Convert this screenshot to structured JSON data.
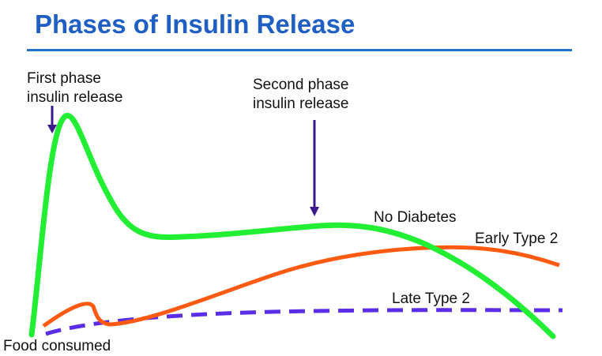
{
  "title": "Phases of Insulin Release",
  "annotations": {
    "first_phase_1": "First phase",
    "first_phase_2": "insulin release",
    "second_phase_1": "Second phase",
    "second_phase_2": "insulin release",
    "food": "Food consumed"
  },
  "colors": {
    "title": "#1f5fc4",
    "rule": "#1f75c8",
    "arrow": "#3a1a8c"
  },
  "chart_data": {
    "type": "line",
    "title": "Phases of Insulin Release",
    "xlabel": "",
    "ylabel": "",
    "grid": false,
    "x": [
      0,
      0.03,
      0.06,
      0.1,
      0.15,
      0.2,
      0.3,
      0.4,
      0.5,
      0.6,
      0.7,
      0.8,
      0.9,
      1.0
    ],
    "ylim": [
      0,
      1
    ],
    "series": [
      {
        "name": "No Diabetes",
        "color": "#22ee33",
        "style": "solid",
        "values": [
          0.0,
          0.96,
          0.95,
          0.55,
          0.42,
          0.41,
          0.42,
          0.46,
          0.47,
          0.38,
          0.25,
          0.1,
          -0.02,
          -0.04
        ]
      },
      {
        "name": "Early Type 2",
        "color": "#ff5a12",
        "style": "solid",
        "values": [
          0.05,
          0.1,
          0.15,
          0.05,
          0.06,
          0.1,
          0.18,
          0.25,
          0.3,
          0.33,
          0.34,
          0.35,
          0.3,
          0.27
        ]
      },
      {
        "name": "Late Type 2",
        "color": "#5a2ee6",
        "style": "dashed",
        "values": [
          0.02,
          0.04,
          0.06,
          0.08,
          0.1,
          0.11,
          0.12,
          0.13,
          0.14,
          0.15,
          0.16,
          0.17,
          0.17,
          0.17
        ]
      }
    ]
  }
}
